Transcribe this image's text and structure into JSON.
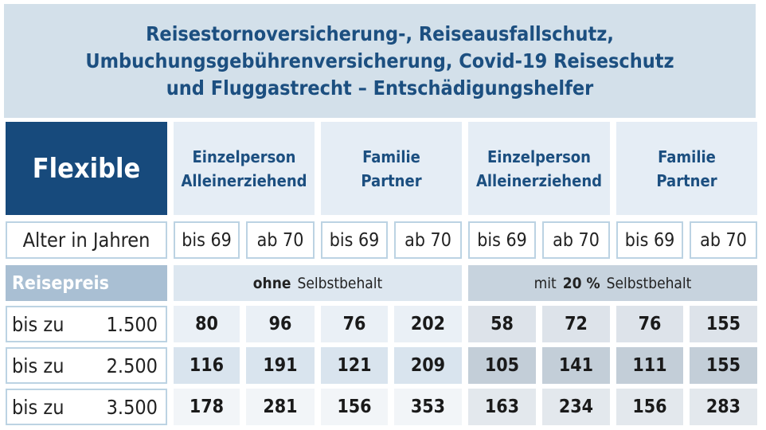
{
  "header": {
    "title": [
      "Reisestornoversicherung-, Reiseausfallschutz,",
      "Umbuchungsgebührenversicherung, Covid-19 Reiseschutz",
      "und Fluggastrecht – Entschädigungshelfer"
    ]
  },
  "table": {
    "corner": "Flexible",
    "groups": [
      [
        "Einzelperson",
        "Alleinerziehend"
      ],
      [
        "Familie",
        "Partner"
      ],
      [
        "Einzelperson",
        "Alleinerziehend"
      ],
      [
        "Familie",
        "Partner"
      ]
    ],
    "age_label": "Alter in Jahren",
    "ages": [
      "bis 69",
      "ab 70",
      "bis 69",
      "ab 70",
      "bis 69",
      "ab 70",
      "bis 69",
      "ab 70"
    ],
    "price_label": "Reisepreis",
    "deductibles": [
      {
        "bold": "ohne",
        "text": "Selbstbehalt"
      },
      {
        "prefix": "mit",
        "bold": "20 %",
        "text": "Selbstbehalt"
      }
    ],
    "rows": [
      {
        "label": "bis zu",
        "price": "1.500",
        "values": [
          80,
          96,
          76,
          202,
          58,
          72,
          76,
          155
        ]
      },
      {
        "label": "bis zu",
        "price": "2.500",
        "values": [
          116,
          191,
          121,
          209,
          105,
          141,
          111,
          155
        ]
      },
      {
        "label": "bis zu",
        "price": "3.500",
        "values": [
          178,
          281,
          156,
          353,
          163,
          234,
          156,
          283
        ]
      }
    ]
  }
}
